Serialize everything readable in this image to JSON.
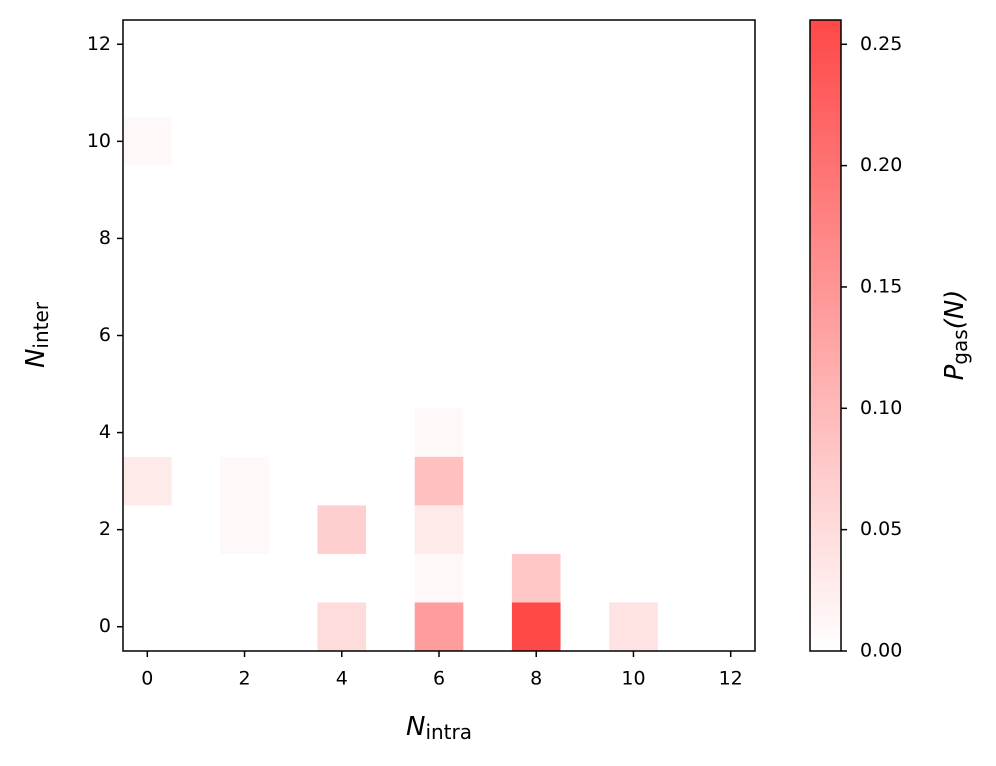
{
  "chart_data": {
    "type": "heatmap",
    "xlabel": {
      "main": "N",
      "sub": "intra"
    },
    "ylabel": {
      "main": "N",
      "sub": "inter"
    },
    "x": [
      0,
      0,
      2,
      2,
      4,
      4,
      6,
      6,
      6,
      6,
      6,
      8,
      8,
      10
    ],
    "y": [
      10,
      3,
      3,
      2,
      2,
      0,
      4,
      3,
      2,
      1,
      0,
      1,
      0,
      0
    ],
    "values": [
      0.01,
      0.03,
      0.01,
      0.01,
      0.07,
      0.05,
      0.01,
      0.09,
      0.03,
      0.01,
      0.14,
      0.08,
      0.26,
      0.04
    ],
    "xlim": [
      -0.5,
      12.5
    ],
    "xticks": [
      0,
      2,
      4,
      6,
      8,
      10,
      12
    ],
    "ylim": [
      -0.5,
      12.5
    ],
    "yticks": [
      0,
      2,
      4,
      6,
      8,
      10,
      12
    ],
    "colormap": [
      "#ffffff",
      "#ff4848"
    ],
    "colorbar": {
      "label": {
        "main": "P",
        "sub": "gas",
        "tail": "(N)"
      },
      "lim": [
        0,
        0.26
      ],
      "ticks": [
        {
          "value": 0,
          "label": "0.00"
        },
        {
          "value": 0.05,
          "label": "0.05"
        },
        {
          "value": 0.1,
          "label": "0.10"
        },
        {
          "value": 0.15,
          "label": "0.15"
        },
        {
          "value": 0.2,
          "label": "0.20"
        },
        {
          "value": 0.25,
          "label": "0.25"
        }
      ]
    }
  }
}
